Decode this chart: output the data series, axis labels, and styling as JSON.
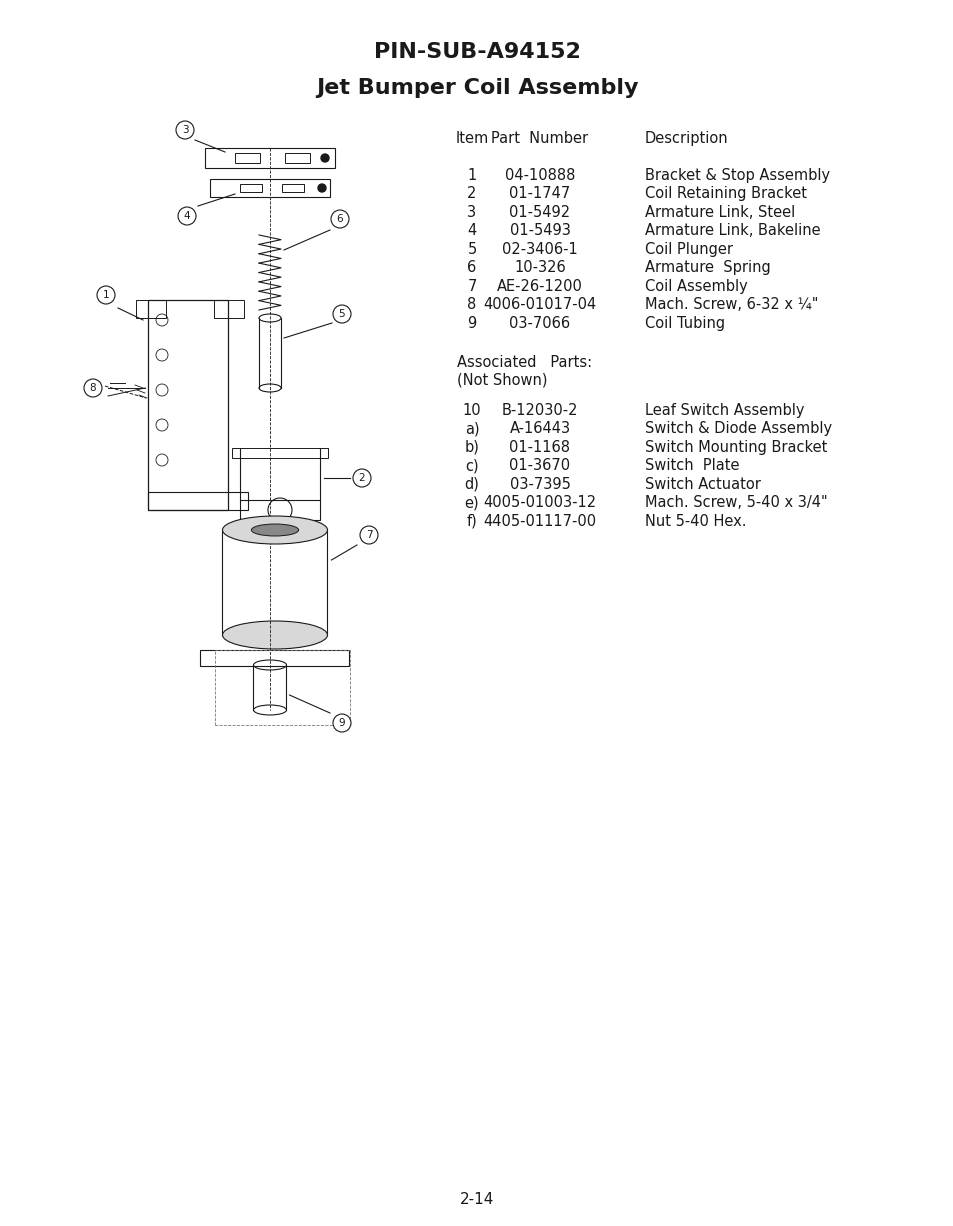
{
  "title_line1": "PIN-SUB-A94152",
  "title_line2": "Jet Bumper Coil Assembly",
  "page_number": "2-14",
  "table_header": [
    "Item",
    "Part Number",
    "Description"
  ],
  "table_rows": [
    [
      "1",
      "04-10888",
      "Bracket & Stop Assembly"
    ],
    [
      "2",
      "01-1747",
      "Coil Retaining Bracket"
    ],
    [
      "3",
      "01-5492",
      "Armature Link, Steel"
    ],
    [
      "4",
      "01-5493",
      "Armature Link, Bakeline"
    ],
    [
      "5",
      "02-3406-1",
      "Coil Plunger"
    ],
    [
      "6",
      "10-326",
      "Armature  Spring"
    ],
    [
      "7",
      "AE-26-1200",
      "Coil Assembly"
    ],
    [
      "8",
      "4006-01017-04",
      "Mach. Screw, 6-32 x ¼\""
    ],
    [
      "9",
      "03-7066",
      "Coil Tubing"
    ]
  ],
  "associated_rows": [
    [
      "10",
      "B-12030-2",
      "Leaf Switch Assembly"
    ],
    [
      "a)",
      "A-16443",
      "Switch & Diode Assembly"
    ],
    [
      "b)",
      "01-1168",
      "Switch Mounting Bracket"
    ],
    [
      "c)",
      "01-3670",
      "Switch  Plate"
    ],
    [
      "d)",
      "03-7395",
      "Switch Actuator"
    ],
    [
      "e)",
      "4005-01003-12",
      "Mach. Screw, 5-40 x 3/4\""
    ],
    [
      "f)",
      "4405-01117-00",
      "Nut 5-40 Hex."
    ]
  ],
  "bg_color": "#ffffff",
  "text_color": "#1a1a1a"
}
